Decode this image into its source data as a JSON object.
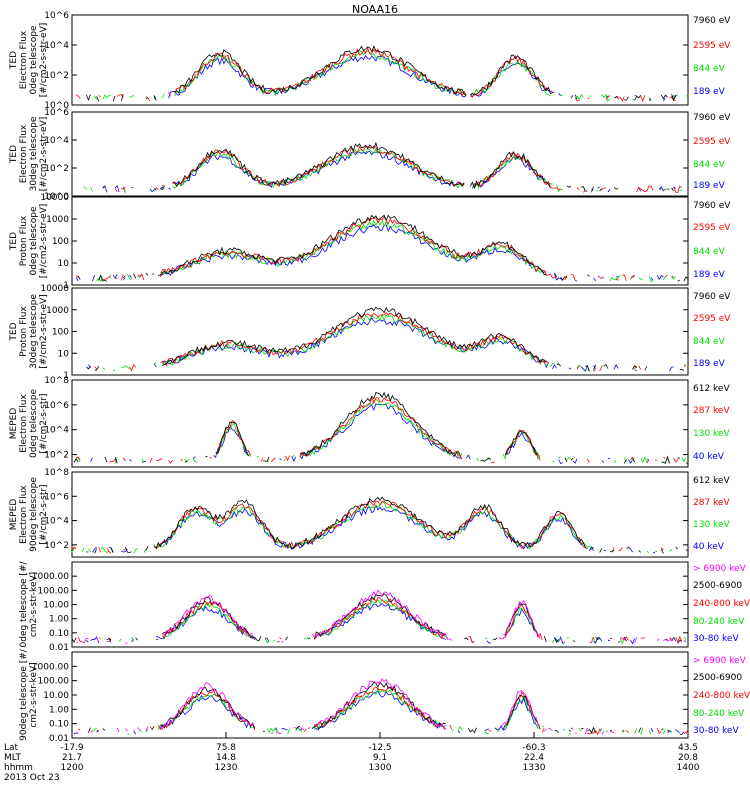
{
  "title": "NOAA16",
  "colors": {
    "blue": "#0000ff",
    "red": "#ff0000",
    "green": "#00e000",
    "black": "#000000",
    "magenta": "#ff00ff"
  },
  "chart_data": [
    {
      "type": "line",
      "id": "ted-e-0",
      "scale": "log",
      "ylim": [
        1,
        1000000
      ],
      "ylabel": [
        "TED",
        "Electron Flux",
        "0deg telescope",
        "[#/cm2-s-str-eV]"
      ],
      "yticks": [
        {
          "v": 1,
          "label": "10^0"
        },
        {
          "v": 100,
          "label": "10^2"
        },
        {
          "v": 10000,
          "label": "10^4"
        },
        {
          "v": 1000000,
          "label": "10^6"
        }
      ],
      "series": [
        {
          "name": "7960 eV",
          "color": "#000000"
        },
        {
          "name": "2595 eV",
          "color": "#ff0000"
        },
        {
          "name": "844 eV",
          "color": "#00e000"
        },
        {
          "name": "189 eV",
          "color": "#0000ff"
        }
      ]
    },
    {
      "type": "line",
      "id": "ted-e-30",
      "scale": "log",
      "ylim": [
        1,
        1000000
      ],
      "ylabel": [
        "TED",
        "Electron Flux",
        "30deg telescope",
        "[#/cm2-s-str-eV]"
      ],
      "yticks": [
        {
          "v": 1,
          "label": "10^0"
        },
        {
          "v": 100,
          "label": "10^2"
        },
        {
          "v": 10000,
          "label": "10^4"
        },
        {
          "v": 1000000,
          "label": "10^6"
        }
      ],
      "series": [
        {
          "name": "7960 eV",
          "color": "#000000"
        },
        {
          "name": "2595 eV",
          "color": "#ff0000"
        },
        {
          "name": "844 eV",
          "color": "#00e000"
        },
        {
          "name": "189 eV",
          "color": "#0000ff"
        }
      ]
    },
    {
      "type": "line",
      "id": "ted-p-0",
      "scale": "log",
      "ylim": [
        1,
        10000
      ],
      "ylabel": [
        "TED",
        "Proton Flux",
        "0deg telescope",
        "[#/cm2-s-str-eV]"
      ],
      "yticks": [
        {
          "v": 1,
          "label": "1"
        },
        {
          "v": 10,
          "label": "10"
        },
        {
          "v": 100,
          "label": "100"
        },
        {
          "v": 1000,
          "label": "1000"
        },
        {
          "v": 10000,
          "label": "10000"
        }
      ],
      "series": [
        {
          "name": "7960 eV",
          "color": "#000000"
        },
        {
          "name": "2595 eV",
          "color": "#ff0000"
        },
        {
          "name": "844 eV",
          "color": "#00e000"
        },
        {
          "name": "189 eV",
          "color": "#0000ff"
        }
      ]
    },
    {
      "type": "line",
      "id": "ted-p-30",
      "scale": "log",
      "ylim": [
        1,
        10000
      ],
      "ylabel": [
        "TED",
        "Proton Flux",
        "30deg telescope",
        "[#/cm2-s-str-eV]"
      ],
      "yticks": [
        {
          "v": 1,
          "label": "1"
        },
        {
          "v": 10,
          "label": "10"
        },
        {
          "v": 100,
          "label": "100"
        },
        {
          "v": 1000,
          "label": "1000"
        },
        {
          "v": 10000,
          "label": "10000"
        }
      ],
      "series": [
        {
          "name": "7960 eV",
          "color": "#000000"
        },
        {
          "name": "2595 eV",
          "color": "#ff0000"
        },
        {
          "name": "844 eV",
          "color": "#00e000"
        },
        {
          "name": "189 eV",
          "color": "#0000ff"
        }
      ]
    },
    {
      "type": "line",
      "id": "meped-e-0",
      "scale": "log",
      "ylim": [
        10,
        100000000
      ],
      "ylabel": [
        "MEPED",
        "Electron Flux",
        "0deg telescope",
        "[#/cm2-s-str]"
      ],
      "yticks": [
        {
          "v": 100,
          "label": "10^2"
        },
        {
          "v": 10000,
          "label": "10^4"
        },
        {
          "v": 1000000,
          "label": "10^6"
        },
        {
          "v": 100000000,
          "label": "10^8"
        }
      ],
      "series": [
        {
          "name": "612 keV",
          "color": "#000000"
        },
        {
          "name": "287 keV",
          "color": "#ff0000"
        },
        {
          "name": "130 keV",
          "color": "#00e000"
        },
        {
          "name": "40 keV",
          "color": "#0000ff"
        }
      ]
    },
    {
      "type": "line",
      "id": "meped-e-90",
      "scale": "log",
      "ylim": [
        10,
        100000000
      ],
      "ylabel": [
        "MEPED",
        "Electron Flux",
        "90deg telescope",
        "[#/cm2-s-str]"
      ],
      "yticks": [
        {
          "v": 100,
          "label": "10^2"
        },
        {
          "v": 10000,
          "label": "10^4"
        },
        {
          "v": 1000000,
          "label": "10^6"
        },
        {
          "v": 100000000,
          "label": "10^8"
        }
      ],
      "series": [
        {
          "name": "612 keV",
          "color": "#000000"
        },
        {
          "name": "287 keV",
          "color": "#ff0000"
        },
        {
          "name": "130 keV",
          "color": "#00e000"
        },
        {
          "name": "40 keV",
          "color": "#0000ff"
        }
      ]
    },
    {
      "type": "line",
      "id": "meped-p-0",
      "scale": "log",
      "ylim": [
        0.01,
        10000
      ],
      "ylabel": [
        "0deg telescope [#/",
        "cm2-s-str-keV]"
      ],
      "yticks": [
        {
          "v": 0.01,
          "label": "0.01"
        },
        {
          "v": 0.1,
          "label": "0.10"
        },
        {
          "v": 1,
          "label": "1.00"
        },
        {
          "v": 10,
          "label": "10.00"
        },
        {
          "v": 100,
          "label": "100.00"
        },
        {
          "v": 1000,
          "label": "1000.00"
        }
      ],
      "series": [
        {
          "name": "> 6900 keV",
          "color": "#ff00ff"
        },
        {
          "name": "2500-6900",
          "color": "#000000"
        },
        {
          "name": "240-800 keV",
          "color": "#ff0000"
        },
        {
          "name": "80-240 keV",
          "color": "#00e000"
        },
        {
          "name": "30-80 keV",
          "color": "#0000ff"
        }
      ]
    },
    {
      "type": "line",
      "id": "meped-p-90",
      "scale": "log",
      "ylim": [
        0.01,
        10000
      ],
      "ylabel": [
        "90deg telescope [#/",
        "cm2-s-str-keV]"
      ],
      "yticks": [
        {
          "v": 0.01,
          "label": "0.01"
        },
        {
          "v": 0.1,
          "label": "0.10"
        },
        {
          "v": 1,
          "label": "1.00"
        },
        {
          "v": 10,
          "label": "10.00"
        },
        {
          "v": 100,
          "label": "100.00"
        },
        {
          "v": 1000,
          "label": "1000.00"
        }
      ],
      "series": [
        {
          "name": "> 6900 keV",
          "color": "#ff00ff"
        },
        {
          "name": "2500-6900",
          "color": "#000000"
        },
        {
          "name": "240-800 keV",
          "color": "#ff0000"
        },
        {
          "name": "80-240 keV",
          "color": "#00e000"
        },
        {
          "name": "30-80 keV",
          "color": "#0000ff"
        }
      ]
    }
  ],
  "xaxis": {
    "row_labels": [
      "Lat",
      "MLT",
      "hhmm"
    ],
    "date": "2013 Oct 23",
    "ticks": [
      {
        "hhmm": "1200",
        "lat": "-17.9",
        "mlt": "21.7"
      },
      {
        "hhmm": "1230",
        "lat": "75.8",
        "mlt": "14.8"
      },
      {
        "hhmm": "1300",
        "lat": "-12.5",
        "mlt": "9.1"
      },
      {
        "hhmm": "1330",
        "lat": "-60.3",
        "mlt": "22.4"
      },
      {
        "hhmm": "1400",
        "lat": "43.5",
        "mlt": "20.8"
      }
    ]
  }
}
